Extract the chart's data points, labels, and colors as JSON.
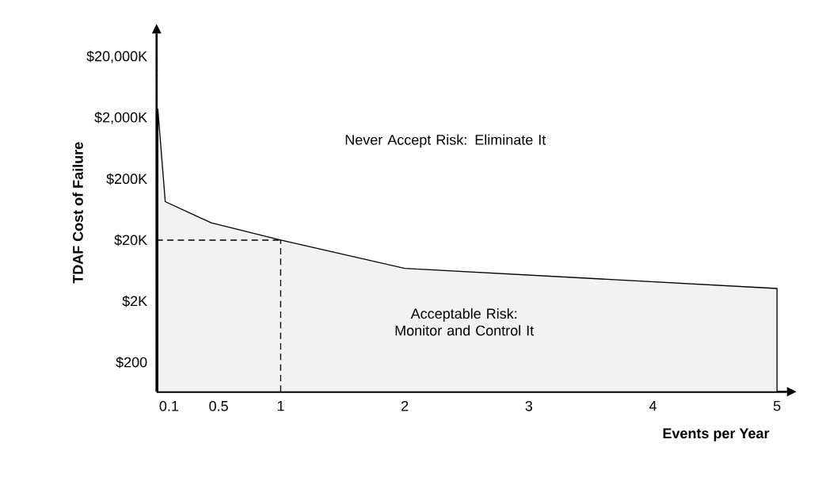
{
  "chart_data": {
    "type": "area",
    "xlabel": "Events per Year",
    "ylabel": "TDAF Cost of Failure",
    "x": [
      0.01,
      0.07,
      0.44,
      1,
      2,
      5
    ],
    "series": [
      {
        "color": "#f2f2f2",
        "values": [
          2800000,
          85000,
          38500,
          20000,
          6900,
          3230
        ]
      }
    ],
    "log": "y",
    "grid": false,
    "xlim": [
      0,
      5.08
    ],
    "ylim": [
      66,
      48000000
    ],
    "xticks": [
      0.1,
      0.5,
      1,
      2,
      3,
      4,
      5
    ],
    "yticks": [
      {
        "value": 200,
        "label": "$200"
      },
      {
        "value": 2000,
        "label": "$2K"
      },
      {
        "value": 20000,
        "label": "$20K"
      },
      {
        "value": 200000,
        "label": "$200K"
      },
      {
        "value": 2000000,
        "label": "$2,000K"
      },
      {
        "value": 20000000,
        "label": "$20,000K"
      }
    ],
    "ref_lines": [
      {
        "axis": "y",
        "value": 20000,
        "line_style": "dashed"
      },
      {
        "axis": "x",
        "value": 1,
        "line_style": "dashed"
      }
    ],
    "annotations": [
      "Never Accept Risk: Eliminate It",
      "Acceptable Risk: Monitor and Control It"
    ]
  }
}
